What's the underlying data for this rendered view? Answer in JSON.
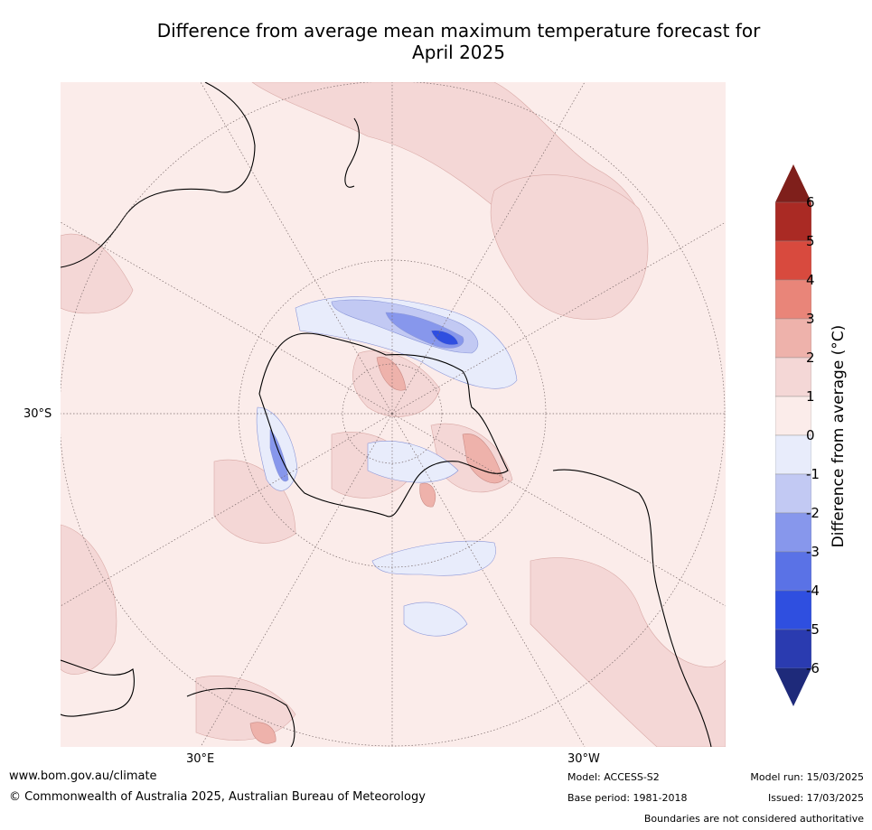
{
  "title_line1": "Difference from average mean maximum temperature forecast for",
  "title_line2": "April 2025",
  "map_labels": {
    "lat": "30°S",
    "lon_east": "30°E",
    "lon_west": "30°W"
  },
  "colorbar": {
    "label": "Difference from average (°C)",
    "ticks": [
      "6",
      "5",
      "4",
      "3",
      "2",
      "1",
      "0",
      "-1",
      "-2",
      "-3",
      "-4",
      "-5",
      "-6"
    ],
    "colors": [
      "#7f1f1b",
      "#aa2a24",
      "#d84a3e",
      "#e98579",
      "#eeb2ab",
      "#f4d7d6",
      "#fbecea",
      "#e8ecfb",
      "#c2c9f3",
      "#8797ec",
      "#5a72e6",
      "#2f4fe0",
      "#2a3bb0",
      "#1e2a7a"
    ]
  },
  "colors": {
    "ocean_base": "#fbecea",
    "land_outline": "#000000",
    "grid": "#7a6a6a"
  },
  "footer": {
    "url": "www.bom.gov.au/climate",
    "copyright": "© Commonwealth of Australia 2025, Australian Bureau of Meteorology",
    "model": "Model: ACCESS-S2",
    "base_period": "Base period: 1981-2018",
    "model_run": "Model run: 15/03/2025",
    "issued": "Issued: 17/03/2025",
    "boundaries": "Boundaries are not considered authoritative"
  }
}
